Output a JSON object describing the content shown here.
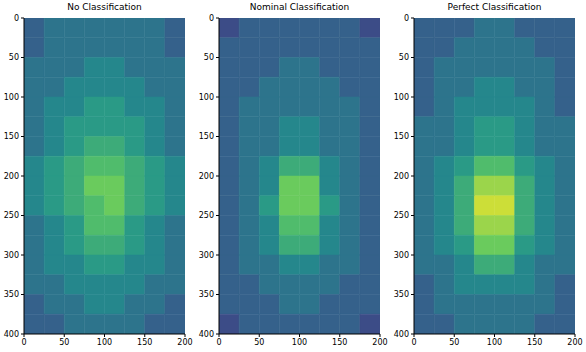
{
  "chart_data": [
    {
      "type": "heatmap",
      "title": "No Classification",
      "xlim": [
        0,
        200
      ],
      "ylim": [
        0,
        400
      ],
      "xticks": [
        0,
        50,
        100,
        150,
        200
      ],
      "yticks": [
        0,
        50,
        100,
        150,
        200,
        250,
        300,
        350,
        400
      ],
      "zlim": [
        -2,
        11
      ],
      "cells": [
        [
          2,
          3,
          3,
          3,
          3,
          3,
          3,
          2
        ],
        [
          2,
          3,
          3,
          3,
          3,
          3,
          3,
          2
        ],
        [
          3,
          3,
          3,
          4,
          4,
          3,
          3,
          3
        ],
        [
          3,
          3,
          4,
          4,
          4,
          4,
          3,
          3
        ],
        [
          3,
          4,
          4,
          5,
          5,
          4,
          4,
          3
        ],
        [
          3,
          4,
          5,
          5,
          5,
          5,
          4,
          3
        ],
        [
          3,
          4,
          5,
          6,
          6,
          5,
          4,
          3
        ],
        [
          4,
          5,
          6,
          7,
          7,
          6,
          5,
          4
        ],
        [
          4,
          5,
          6,
          8,
          8,
          6,
          5,
          4
        ],
        [
          4,
          5,
          6,
          7,
          8,
          6,
          5,
          4
        ],
        [
          3,
          4,
          5,
          7,
          7,
          5,
          4,
          3
        ],
        [
          3,
          4,
          5,
          6,
          6,
          5,
          4,
          3
        ],
        [
          3,
          4,
          4,
          5,
          5,
          4,
          4,
          3
        ],
        [
          3,
          3,
          4,
          4,
          4,
          4,
          3,
          3
        ],
        [
          2,
          3,
          3,
          4,
          4,
          3,
          3,
          2
        ],
        [
          2,
          2,
          3,
          3,
          3,
          3,
          2,
          2
        ]
      ]
    },
    {
      "type": "heatmap",
      "title": "Nominal Classification",
      "xlim": [
        0,
        200
      ],
      "ylim": [
        0,
        400
      ],
      "xticks": [
        0,
        50,
        100,
        150,
        200
      ],
      "yticks": [
        0,
        50,
        100,
        150,
        200,
        250,
        300,
        350,
        400
      ],
      "zlim": [
        -2,
        11
      ],
      "cells": [
        [
          1,
          2,
          2,
          2,
          2,
          2,
          2,
          1
        ],
        [
          2,
          2,
          2,
          2,
          2,
          2,
          2,
          2
        ],
        [
          2,
          2,
          2,
          3,
          3,
          2,
          2,
          2
        ],
        [
          2,
          2,
          3,
          3,
          3,
          3,
          2,
          2
        ],
        [
          2,
          3,
          3,
          3,
          3,
          3,
          3,
          2
        ],
        [
          2,
          3,
          3,
          4,
          4,
          3,
          3,
          2
        ],
        [
          2,
          3,
          3,
          4,
          4,
          3,
          3,
          2
        ],
        [
          2,
          3,
          4,
          6,
          6,
          4,
          3,
          2
        ],
        [
          2,
          3,
          4,
          8,
          8,
          4,
          3,
          2
        ],
        [
          2,
          3,
          5,
          8,
          8,
          5,
          3,
          2
        ],
        [
          2,
          3,
          4,
          7,
          7,
          4,
          3,
          2
        ],
        [
          2,
          3,
          4,
          6,
          6,
          4,
          3,
          2
        ],
        [
          2,
          3,
          3,
          4,
          4,
          3,
          3,
          2
        ],
        [
          2,
          2,
          3,
          3,
          3,
          3,
          2,
          2
        ],
        [
          2,
          2,
          2,
          3,
          3,
          2,
          2,
          2
        ],
        [
          1,
          2,
          2,
          2,
          2,
          2,
          2,
          1
        ]
      ]
    },
    {
      "type": "heatmap",
      "title": "Perfect Classification",
      "xlim": [
        0,
        200
      ],
      "ylim": [
        0,
        400
      ],
      "xticks": [
        0,
        50,
        100,
        150,
        200
      ],
      "yticks": [
        0,
        50,
        100,
        150,
        200,
        250,
        300,
        350,
        400
      ],
      "zlim": [
        -2,
        11
      ],
      "cells": [
        [
          2,
          2,
          2,
          3,
          3,
          2,
          2,
          2
        ],
        [
          2,
          2,
          3,
          3,
          3,
          3,
          2,
          2
        ],
        [
          2,
          3,
          3,
          3,
          3,
          3,
          3,
          2
        ],
        [
          2,
          3,
          3,
          4,
          4,
          3,
          3,
          2
        ],
        [
          2,
          3,
          4,
          4,
          4,
          4,
          3,
          2
        ],
        [
          3,
          3,
          4,
          5,
          5,
          4,
          3,
          3
        ],
        [
          3,
          3,
          4,
          5,
          5,
          4,
          3,
          3
        ],
        [
          3,
          4,
          5,
          7,
          7,
          5,
          4,
          3
        ],
        [
          3,
          4,
          6,
          9,
          9,
          6,
          4,
          3
        ],
        [
          3,
          4,
          6,
          10,
          10,
          6,
          4,
          3
        ],
        [
          3,
          4,
          6,
          9,
          9,
          6,
          4,
          3
        ],
        [
          3,
          4,
          5,
          8,
          8,
          5,
          4,
          3
        ],
        [
          3,
          3,
          4,
          6,
          6,
          4,
          3,
          3
        ],
        [
          2,
          3,
          4,
          4,
          4,
          4,
          3,
          2
        ],
        [
          2,
          3,
          3,
          3,
          3,
          3,
          3,
          2
        ],
        [
          2,
          2,
          3,
          3,
          3,
          3,
          2,
          2
        ]
      ]
    }
  ]
}
